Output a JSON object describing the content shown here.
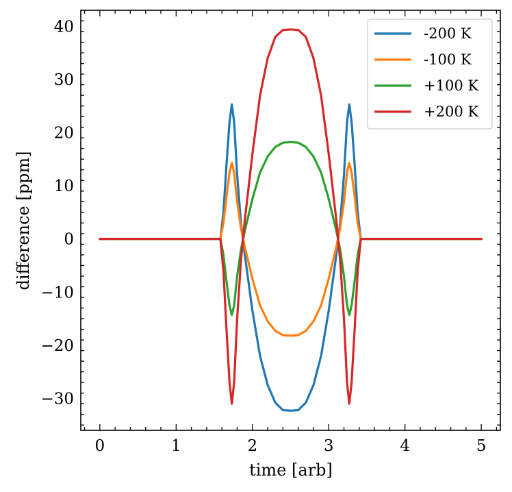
{
  "chart_data": {
    "type": "line",
    "title": "",
    "xlabel": "time [arb]",
    "ylabel": "difference [ppm]",
    "xlim": [
      -0.25,
      5.25
    ],
    "ylim": [
      -36,
      43
    ],
    "xticks": [
      0,
      1,
      2,
      3,
      4,
      5
    ],
    "xtick_labels": [
      "0",
      "1",
      "2",
      "3",
      "4",
      "5"
    ],
    "yticks": [
      -30,
      -20,
      -10,
      0,
      10,
      20,
      30,
      40
    ],
    "ytick_labels": [
      "−30",
      "−20",
      "−10",
      "0",
      "10",
      "20",
      "30",
      "40"
    ],
    "legend_position": "top-right",
    "series": [
      {
        "name": "-200 K",
        "color": "#1f77b4",
        "x": [
          0,
          1.58,
          1.62,
          1.66,
          1.7,
          1.73,
          1.76,
          1.8,
          1.85,
          1.9,
          2.0,
          2.1,
          2.2,
          2.3,
          2.4,
          2.5,
          2.6,
          2.7,
          2.8,
          2.9,
          3.0,
          3.1,
          3.15,
          3.2,
          3.24,
          3.27,
          3.3,
          3.34,
          3.38,
          3.42,
          5
        ],
        "values": [
          0,
          0,
          5,
          14,
          22,
          25.3,
          22,
          12,
          3,
          -3,
          -13.5,
          -22,
          -27.5,
          -30.8,
          -32.2,
          -32.3,
          -32.2,
          -30.8,
          -27.5,
          -22,
          -13.5,
          -3,
          3,
          12,
          22,
          25.3,
          22,
          14,
          5,
          0,
          0
        ]
      },
      {
        "name": "-100 K",
        "color": "#ff7f0e",
        "x": [
          0,
          1.58,
          1.62,
          1.66,
          1.7,
          1.73,
          1.76,
          1.8,
          1.85,
          1.9,
          2.0,
          2.1,
          2.2,
          2.3,
          2.4,
          2.5,
          2.6,
          2.7,
          2.8,
          2.9,
          3.0,
          3.1,
          3.15,
          3.2,
          3.24,
          3.27,
          3.3,
          3.34,
          3.38,
          3.42,
          5
        ],
        "values": [
          0,
          0,
          3,
          8,
          12.5,
          14.3,
          12.5,
          7,
          2,
          -1.5,
          -7.5,
          -12.5,
          -15.5,
          -17.3,
          -18.1,
          -18.2,
          -18.1,
          -17.3,
          -15.5,
          -12.5,
          -7.5,
          -1.5,
          2,
          7,
          12.5,
          14.3,
          12.5,
          8,
          3,
          0,
          0
        ]
      },
      {
        "name": "+100 K",
        "color": "#2ca02c",
        "x": [
          0,
          1.58,
          1.62,
          1.66,
          1.7,
          1.73,
          1.76,
          1.8,
          1.85,
          1.9,
          2.0,
          2.1,
          2.2,
          2.3,
          2.4,
          2.5,
          2.6,
          2.7,
          2.8,
          2.9,
          3.0,
          3.1,
          3.15,
          3.2,
          3.24,
          3.27,
          3.3,
          3.34,
          3.38,
          3.42,
          5
        ],
        "values": [
          0,
          0,
          -3,
          -8,
          -12.5,
          -14.3,
          -12.5,
          -7,
          -2,
          1.5,
          7.5,
          12.5,
          15.5,
          17.3,
          18.1,
          18.2,
          18.1,
          17.3,
          15.5,
          12.5,
          7.5,
          1.5,
          -2,
          -7,
          -12.5,
          -14.3,
          -12.5,
          -8,
          -3,
          0,
          0
        ]
      },
      {
        "name": "+200 K",
        "color": "#d62728",
        "x": [
          0,
          1.58,
          1.62,
          1.66,
          1.7,
          1.73,
          1.76,
          1.8,
          1.85,
          1.9,
          2.0,
          2.1,
          2.2,
          2.3,
          2.4,
          2.5,
          2.6,
          2.7,
          2.8,
          2.9,
          3.0,
          3.1,
          3.15,
          3.2,
          3.24,
          3.27,
          3.3,
          3.34,
          3.38,
          3.42,
          5
        ],
        "values": [
          0,
          0,
          -6,
          -17,
          -27,
          -31,
          -27,
          -15,
          -4,
          3.5,
          16,
          27,
          34,
          38,
          39.3,
          39.4,
          39.3,
          38,
          34,
          27,
          16,
          3.5,
          -4,
          -15,
          -27,
          -31,
          -27,
          -17,
          -6,
          0,
          0
        ]
      }
    ]
  }
}
